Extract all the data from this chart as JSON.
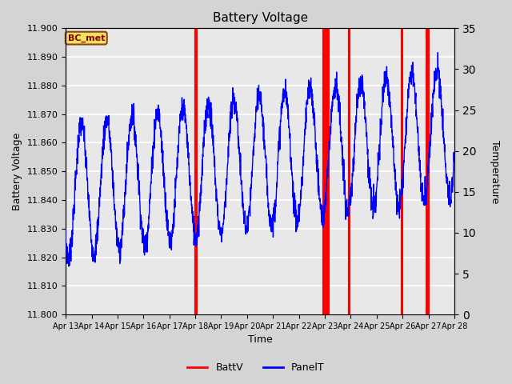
{
  "title": "Battery Voltage",
  "xlabel": "Time",
  "ylabel_left": "Battery Voltage",
  "ylabel_right": "Temperature",
  "ylim_left": [
    11.8,
    11.9
  ],
  "ylim_right": [
    0,
    35
  ],
  "yticks_left": [
    11.8,
    11.81,
    11.82,
    11.83,
    11.84,
    11.85,
    11.86,
    11.87,
    11.88,
    11.89,
    11.9
  ],
  "yticks_right": [
    0,
    5,
    10,
    15,
    20,
    25,
    30,
    35
  ],
  "xtick_labels": [
    "Apr 13",
    "Apr 14",
    "Apr 15",
    "Apr 16",
    "Apr 17",
    "Apr 18",
    "Apr 19",
    "Apr 20",
    "Apr 21",
    "Apr 22",
    "Apr 23",
    "Apr 24",
    "Apr 25",
    "Apr 26",
    "Apr 27",
    "Apr 28"
  ],
  "station_label": "BC_met",
  "legend_entries": [
    "BattV",
    "PanelT"
  ],
  "fig_bg": "#d4d4d4",
  "plot_bg": "#e8e8e8",
  "batt_spike_days": [
    5.0,
    5.03,
    5.06,
    9.95,
    10.0,
    10.05,
    10.1,
    10.15,
    10.92,
    10.97,
    12.95,
    13.0,
    13.93,
    13.97,
    14.0
  ],
  "xlim": [
    0,
    15
  ]
}
